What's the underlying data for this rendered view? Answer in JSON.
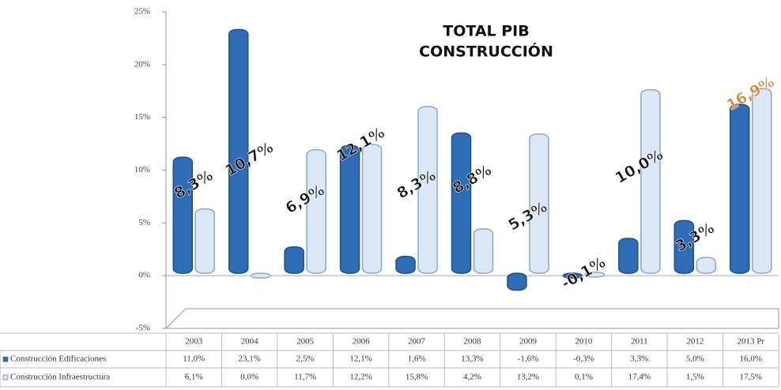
{
  "chart_data": {
    "type": "bar",
    "title": [
      "TOTAL PIB",
      "CONSTRUCCIÓN"
    ],
    "categories": [
      "2003",
      "2004",
      "2005",
      "2006",
      "2007",
      "2008",
      "2009",
      "2010",
      "2011",
      "2012",
      "2013 Pr"
    ],
    "series": [
      {
        "name": "Construcción Edificaciones",
        "color": "#2e6cb6",
        "values": [
          11.0,
          23.1,
          2.5,
          12.1,
          1.6,
          13.3,
          -1.6,
          -0.3,
          3.3,
          5.0,
          16.0
        ],
        "value_labels": [
          "11,0%",
          "23,1%",
          "2,5%",
          "12,1%",
          "1,6%",
          "13,3%",
          "-1,6%",
          "-0,3%",
          "3,3%",
          "5,0%",
          "16,0%"
        ]
      },
      {
        "name": "Construcción Infraestructura",
        "color": "#dde8f6",
        "values": [
          6.1,
          0.0,
          11.7,
          12.2,
          15.8,
          4.2,
          13.2,
          0.1,
          17.4,
          1.5,
          17.5
        ],
        "value_labels": [
          "6,1%",
          "0,0%",
          "11,7%",
          "12,2%",
          "15,8%",
          "4,2%",
          "13,2%",
          "0,1%",
          "17,4%",
          "1,5%",
          "17,5%"
        ]
      }
    ],
    "totals": {
      "values": [
        8.3,
        10.7,
        6.9,
        12.1,
        8.3,
        8.8,
        5.3,
        -0.1,
        10.0,
        3.3,
        16.9
      ],
      "value_labels": [
        "8,3%",
        "10,7%",
        "6,9%",
        "12,1%",
        "8,3%",
        "8,8%",
        "5,3%",
        "-0,1%",
        "10,0%",
        "3,3%",
        "16,9%"
      ],
      "colors": [
        "#111",
        "#111",
        "#111",
        "#111",
        "#111",
        "#111",
        "#111",
        "#111",
        "#111",
        "#111",
        "#e0802a"
      ]
    },
    "ylim": [
      -5,
      25
    ],
    "yticks": [
      {
        "value": -5,
        "label": "-5%"
      },
      {
        "value": 0,
        "label": "0%"
      },
      {
        "value": 5,
        "label": "5%"
      },
      {
        "value": 10,
        "label": "10%"
      },
      {
        "value": 15,
        "label": "15%"
      },
      {
        "value": 20,
        "label": "20%"
      },
      {
        "value": 25,
        "label": "25%"
      }
    ],
    "grid": false
  }
}
